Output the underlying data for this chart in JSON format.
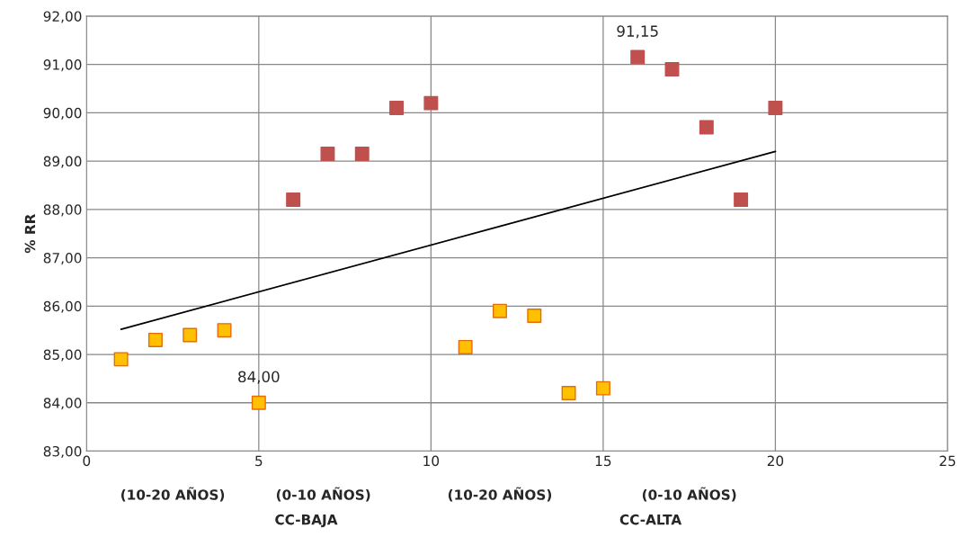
{
  "chart_data": {
    "type": "scatter",
    "ylabel": "% RR",
    "marker": "square",
    "grid": true,
    "legend": false,
    "xlim": [
      0,
      25
    ],
    "xticks": [
      0,
      5,
      10,
      15,
      20,
      25
    ],
    "ylim": [
      83,
      92
    ],
    "yticks": [
      {
        "value": 83,
        "label": "83,00"
      },
      {
        "value": 84,
        "label": "84,00"
      },
      {
        "value": 85,
        "label": "85,00"
      },
      {
        "value": 86,
        "label": "86,00"
      },
      {
        "value": 87,
        "label": "87,00"
      },
      {
        "value": 88,
        "label": "88,00"
      },
      {
        "value": 89,
        "label": "89,00"
      },
      {
        "value": 90,
        "label": "90,00"
      },
      {
        "value": 91,
        "label": "91,00"
      },
      {
        "value": 92,
        "label": "92,00"
      }
    ],
    "series": [
      {
        "color": "#ffc000",
        "x": [
          1,
          2,
          3,
          4,
          5,
          11,
          12,
          13,
          14,
          15
        ],
        "values": [
          84.9,
          85.3,
          85.4,
          85.5,
          84.0,
          85.15,
          85.9,
          85.8,
          84.2,
          84.3
        ]
      },
      {
        "color": "#c0504d",
        "x": [
          6,
          7,
          8,
          9,
          10,
          16,
          17,
          18,
          19,
          20
        ],
        "values": [
          88.2,
          89.15,
          89.15,
          90.1,
          90.2,
          91.15,
          90.9,
          89.7,
          88.2,
          90.1
        ]
      },
      {
        "type": "line",
        "color": "#000000",
        "marker": "none",
        "x": [
          1,
          20
        ],
        "values": [
          85.52,
          89.2
        ]
      }
    ],
    "annotations": [
      {
        "text": "91,15",
        "x": 16,
        "y": 91.15
      },
      {
        "text": "84,00",
        "x": 5,
        "y": 84.0
      },
      "(10-20 AÑOS)",
      "(0-10 AÑOS)",
      "(10-20 AÑOS)",
      "(0-10 AÑOS)",
      "CC-BAJA",
      "CC-ALTA"
    ]
  }
}
